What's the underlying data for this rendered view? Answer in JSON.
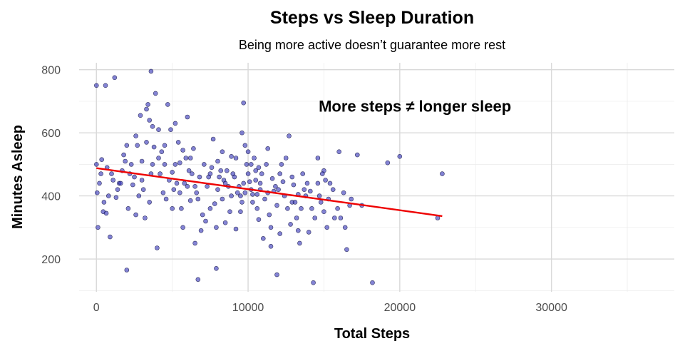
{
  "chart_data": {
    "type": "scatter",
    "title": "Steps vs Sleep Duration",
    "subtitle": "Being more active doesn’t guarantee more rest",
    "xlabel": "Total Steps",
    "ylabel": "Minutes Asleep",
    "xlim": [
      -1140,
      38100
    ],
    "ylim": [
      96,
      822
    ],
    "xticks": [
      0,
      10000,
      20000,
      30000
    ],
    "yticks": [
      200,
      400,
      600,
      800
    ],
    "xtick_labels": [
      "0",
      "10000",
      "20000",
      "30000"
    ],
    "ytick_labels": [
      "200",
      "400",
      "600",
      "800"
    ],
    "grid": true,
    "annotation": {
      "text": "More steps ≠ longer sleep",
      "x": 21000,
      "y": 685
    },
    "point_color": "#3030b8",
    "trend_color": "#ee0000",
    "trend": {
      "x": [
        0,
        22800
      ],
      "y": [
        488,
        336
      ]
    },
    "points": [
      [
        0,
        750
      ],
      [
        600,
        750
      ],
      [
        1200,
        775
      ],
      [
        0,
        500
      ],
      [
        50,
        410
      ],
      [
        100,
        300
      ],
      [
        350,
        515
      ],
      [
        450,
        350
      ],
      [
        800,
        400
      ],
      [
        900,
        270
      ],
      [
        300,
        470
      ],
      [
        650,
        345
      ],
      [
        1500,
        440
      ],
      [
        1300,
        395
      ],
      [
        1800,
        530
      ],
      [
        2000,
        165
      ],
      [
        2200,
        470
      ],
      [
        2400,
        435
      ],
      [
        2600,
        590
      ],
      [
        2700,
        560
      ],
      [
        2900,
        655
      ],
      [
        3000,
        510
      ],
      [
        3100,
        420
      ],
      [
        3300,
        675
      ],
      [
        3400,
        690
      ],
      [
        3500,
        640
      ],
      [
        3600,
        795
      ],
      [
        3700,
        620
      ],
      [
        3800,
        555
      ],
      [
        3900,
        725
      ],
      [
        4000,
        235
      ],
      [
        4100,
        610
      ],
      [
        4300,
        540
      ],
      [
        4500,
        500
      ],
      [
        4700,
        690
      ],
      [
        4900,
        610
      ],
      [
        5000,
        475
      ],
      [
        5100,
        420
      ],
      [
        5200,
        630
      ],
      [
        5400,
        570
      ],
      [
        5500,
        505
      ],
      [
        5700,
        545
      ],
      [
        5800,
        440
      ],
      [
        6000,
        650
      ],
      [
        6100,
        480
      ],
      [
        6200,
        385
      ],
      [
        6400,
        550
      ],
      [
        6500,
        250
      ],
      [
        6700,
        135
      ],
      [
        6900,
        290
      ],
      [
        7100,
        500
      ],
      [
        7200,
        320
      ],
      [
        7400,
        460
      ],
      [
        7500,
        360
      ],
      [
        7700,
        580
      ],
      [
        7900,
        170
      ],
      [
        8000,
        510
      ],
      [
        8100,
        460
      ],
      [
        8300,
        390
      ],
      [
        8500,
        315
      ],
      [
        8700,
        430
      ],
      [
        8900,
        525
      ],
      [
        9000,
        470
      ],
      [
        9200,
        295
      ],
      [
        9300,
        410
      ],
      [
        9500,
        350
      ],
      [
        9600,
        600
      ],
      [
        9700,
        695
      ],
      [
        9800,
        560
      ],
      [
        9900,
        500
      ],
      [
        10000,
        540
      ],
      [
        10100,
        445
      ],
      [
        10200,
        420
      ],
      [
        10300,
        405
      ],
      [
        10400,
        520
      ],
      [
        10500,
        480
      ],
      [
        10600,
        360
      ],
      [
        10700,
        325
      ],
      [
        10800,
        440
      ],
      [
        11000,
        265
      ],
      [
        11200,
        500
      ],
      [
        11300,
        550
      ],
      [
        11500,
        240
      ],
      [
        11700,
        415
      ],
      [
        11900,
        150
      ],
      [
        12100,
        280
      ],
      [
        12200,
        500
      ],
      [
        12300,
        445
      ],
      [
        12500,
        520
      ],
      [
        12700,
        590
      ],
      [
        12900,
        380
      ],
      [
        13000,
        435
      ],
      [
        13200,
        330
      ],
      [
        13400,
        250
      ],
      [
        13600,
        470
      ],
      [
        13800,
        400
      ],
      [
        14000,
        285
      ],
      [
        14100,
        415
      ],
      [
        14300,
        125
      ],
      [
        14600,
        520
      ],
      [
        14800,
        380
      ],
      [
        15000,
        480
      ],
      [
        15200,
        300
      ],
      [
        15400,
        440
      ],
      [
        15700,
        330
      ],
      [
        16000,
        540
      ],
      [
        16300,
        410
      ],
      [
        16500,
        230
      ],
      [
        16800,
        390
      ],
      [
        17200,
        530
      ],
      [
        18200,
        125
      ],
      [
        19200,
        505
      ],
      [
        20000,
        525
      ],
      [
        22500,
        330
      ],
      [
        22800,
        470
      ],
      [
        1000,
        470
      ],
      [
        2500,
        460
      ],
      [
        3200,
        330
      ],
      [
        4400,
        410
      ],
      [
        5600,
        360
      ],
      [
        6600,
        410
      ],
      [
        7800,
        375
      ],
      [
        8800,
        350
      ],
      [
        9400,
        430
      ],
      [
        10600,
        405
      ],
      [
        11600,
        455
      ],
      [
        12600,
        360
      ],
      [
        13300,
        405
      ],
      [
        500,
        380
      ],
      [
        1700,
        480
      ],
      [
        2800,
        400
      ],
      [
        4200,
        470
      ],
      [
        5300,
        440
      ],
      [
        6300,
        470
      ],
      [
        7300,
        430
      ],
      [
        8200,
        480
      ],
      [
        9100,
        460
      ],
      [
        10900,
        470
      ],
      [
        12000,
        420
      ],
      [
        13500,
        360
      ],
      [
        14900,
        470
      ],
      [
        15900,
        360
      ],
      [
        200,
        440
      ],
      [
        1100,
        450
      ],
      [
        2100,
        360
      ],
      [
        3500,
        380
      ],
      [
        4600,
        390
      ],
      [
        5900,
        520
      ],
      [
        7000,
        340
      ],
      [
        8400,
        450
      ],
      [
        9500,
        400
      ],
      [
        10300,
        380
      ],
      [
        11100,
        390
      ],
      [
        12400,
        400
      ],
      [
        13900,
        440
      ],
      [
        15300,
        390
      ],
      [
        16700,
        370
      ],
      [
        700,
        490
      ],
      [
        1900,
        510
      ],
      [
        3000,
        450
      ],
      [
        4800,
        450
      ],
      [
        6000,
        430
      ],
      [
        7600,
        490
      ],
      [
        8600,
        480
      ],
      [
        9800,
        410
      ],
      [
        10800,
        420
      ],
      [
        11800,
        430
      ],
      [
        13100,
        380
      ],
      [
        14400,
        330
      ],
      [
        15600,
        420
      ],
      [
        17500,
        370
      ],
      [
        2300,
        500
      ],
      [
        3700,
        500
      ],
      [
        5000,
        360
      ],
      [
        6800,
        460
      ],
      [
        8000,
        420
      ],
      [
        9200,
        520
      ],
      [
        10500,
        450
      ],
      [
        11400,
        340
      ],
      [
        12800,
        310
      ],
      [
        14200,
        360
      ],
      [
        16100,
        330
      ],
      [
        1400,
        420
      ],
      [
        2600,
        340
      ],
      [
        4100,
        520
      ],
      [
        5500,
        410
      ],
      [
        6500,
        430
      ],
      [
        7500,
        470
      ],
      [
        8900,
        400
      ],
      [
        9700,
        440
      ],
      [
        10700,
        490
      ],
      [
        11900,
        370
      ],
      [
        13700,
        420
      ],
      [
        15100,
        450
      ],
      [
        3300,
        570
      ],
      [
        4500,
        560
      ],
      [
        6200,
        520
      ],
      [
        8300,
        540
      ],
      [
        10200,
        500
      ],
      [
        12100,
        470
      ],
      [
        14600,
        440
      ],
      [
        1600,
        440
      ],
      [
        5700,
        300
      ],
      [
        7900,
        300
      ],
      [
        9600,
        380
      ],
      [
        11300,
        410
      ],
      [
        12900,
        460
      ],
      [
        14700,
        400
      ],
      [
        16400,
        300
      ],
      [
        2000,
        560
      ],
      [
        3600,
        470
      ],
      [
        5200,
        500
      ],
      [
        6700,
        390
      ],
      [
        8500,
        440
      ],
      [
        10000,
        470
      ],
      [
        11500,
        300
      ],
      [
        13300,
        290
      ],
      [
        15000,
        350
      ]
    ]
  }
}
